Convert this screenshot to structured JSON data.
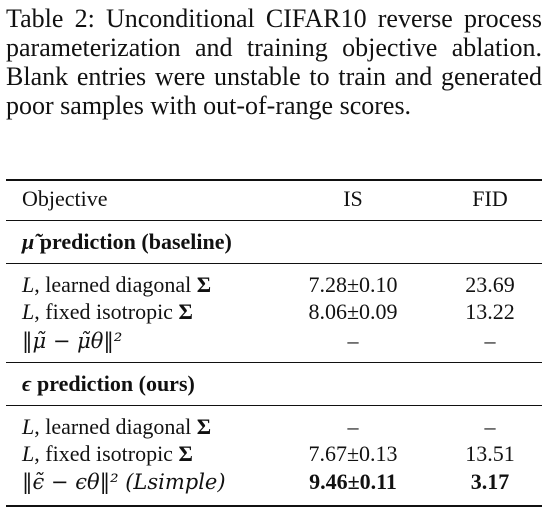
{
  "caption": "Table 2: Unconditional CIFAR10 reverse process parameterization and training objective ablation. Blank entries were unstable to train and generated poor samples with out-of-range scores.",
  "headers": {
    "objective": "Objective",
    "is": "IS",
    "fid": "FID"
  },
  "sections": [
    {
      "title_symbol": "μ̃",
      "title_text": "prediction (baseline)",
      "rows": [
        {
          "objective_prefix": "L",
          "objective_text": ", learned diagonal",
          "objective_symbol": "Σ",
          "is": "7.28±0.10",
          "fid": "23.69"
        },
        {
          "objective_prefix": "L",
          "objective_text": ", fixed isotropic",
          "objective_symbol": "Σ",
          "is": "8.06±0.09",
          "fid": "13.22"
        },
        {
          "objective_math": "‖μ̃ − μ̃θ‖²",
          "is": "–",
          "fid": "–"
        }
      ]
    },
    {
      "title_symbol": "ϵ",
      "title_text": "prediction (ours)",
      "rows": [
        {
          "objective_prefix": "L",
          "objective_text": ", learned diagonal",
          "objective_symbol": "Σ",
          "is": "–",
          "fid": "–"
        },
        {
          "objective_prefix": "L",
          "objective_text": ", fixed isotropic",
          "objective_symbol": "Σ",
          "is": "7.67±0.13",
          "fid": "13.51"
        },
        {
          "objective_math": "‖ϵ̃ − ϵθ‖² (Lsimple)",
          "is": "9.46±0.11",
          "fid": "3.17",
          "bold": true
        }
      ]
    }
  ]
}
